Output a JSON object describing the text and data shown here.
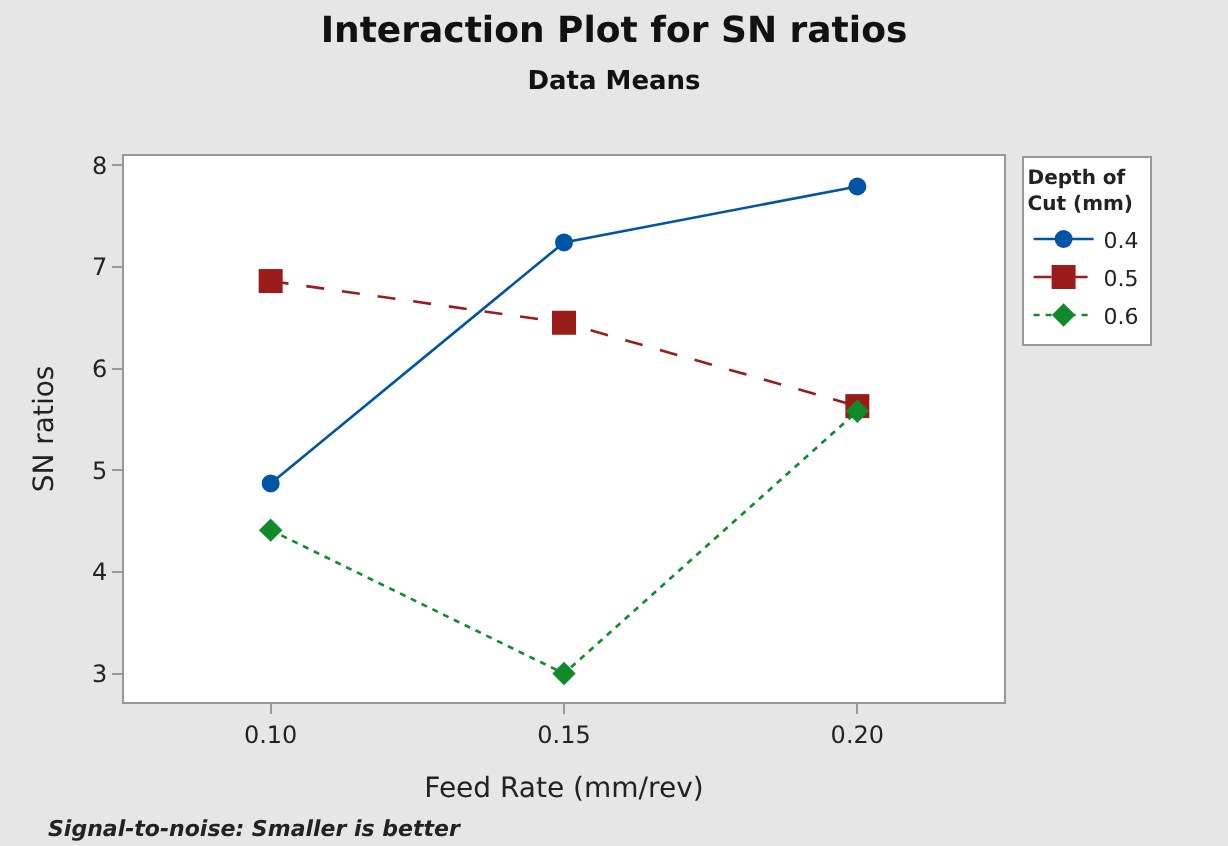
{
  "chart_data": {
    "type": "line",
    "title": "Interaction Plot for SN ratios",
    "subtitle": "Data Means",
    "xlabel": "Feed Rate (mm/rev)",
    "ylabel": "SN ratios",
    "legend_title": "Depth of\nCut (mm)",
    "x": [
      0.1,
      0.15,
      0.2
    ],
    "series": [
      {
        "name": "0.4",
        "color": "#0054a6",
        "values": [
          4.87,
          7.24,
          7.79
        ],
        "marker": "circle",
        "line_style": "solid"
      },
      {
        "name": "0.5",
        "color": "#9b1b1b",
        "values": [
          6.86,
          6.45,
          5.63
        ],
        "marker": "square",
        "line_style": "dashed"
      },
      {
        "name": "0.6",
        "color": "#108a2a",
        "values": [
          4.41,
          3.0,
          5.58
        ],
        "marker": "diamond",
        "line_style": "dotted"
      }
    ],
    "xlim": [
      0.075,
      0.225
    ],
    "xticks": [
      {
        "value": 0.1,
        "label": "0.10"
      },
      {
        "value": 0.15,
        "label": "0.15"
      },
      {
        "value": 0.2,
        "label": "0.20"
      }
    ],
    "ylim": [
      2.72,
      8.09
    ],
    "yticks": [
      3,
      4,
      5,
      6,
      7,
      8
    ],
    "legend": "top right",
    "annotations": [
      "Signal-to-noise: Smaller is better"
    ]
  }
}
